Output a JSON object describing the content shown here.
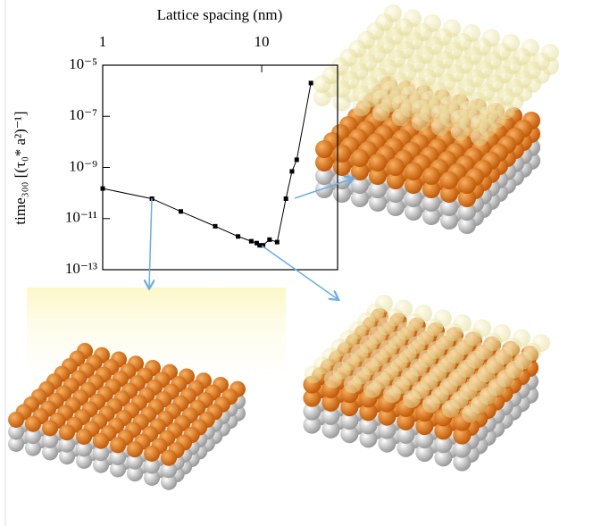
{
  "chart_data": {
    "type": "line",
    "x_label": "Lattice spacing (nm)",
    "y_label": "time₃₀₀ [(τ₀* a²)⁻¹]",
    "x": [
      1,
      2.04,
      3.1,
      5.1,
      7.1,
      8.6,
      9.3,
      9.7,
      10.2,
      11.2,
      12.5,
      14.2,
      15.5,
      16.6,
      20.4
    ],
    "series": [
      {
        "color": "#000000",
        "values": [
          1.5e-10,
          6e-11,
          1.9e-11,
          5e-12,
          2e-12,
          1.3e-12,
          1.1e-12,
          9e-13,
          9e-13,
          1.5e-12,
          1.2e-12,
          6e-11,
          7e-10,
          2e-09,
          2e-06
        ]
      }
    ],
    "xlim": [
      1,
      30
    ],
    "xticks": [
      1,
      10
    ],
    "x_log": true,
    "ylim": [
      1e-13,
      1e-05
    ],
    "y_log": true,
    "yticks": [
      {
        "value": 1e-05,
        "label": "10⁻⁵"
      },
      {
        "value": 1e-07,
        "label": "10⁻⁷"
      },
      {
        "value": 1e-09,
        "label": "10⁻⁹"
      },
      {
        "value": 1e-11,
        "label": "10⁻¹¹"
      },
      {
        "value": 1e-13,
        "label": "10⁻¹³"
      }
    ]
  }
}
